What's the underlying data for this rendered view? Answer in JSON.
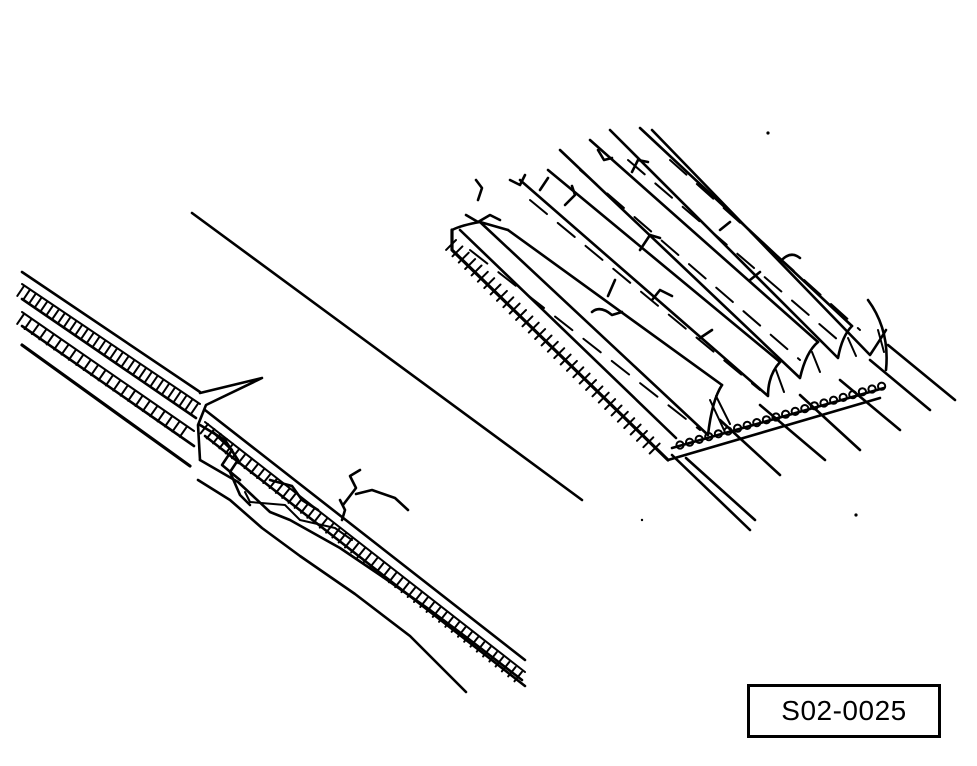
{
  "figure": {
    "id_label": "S02-0025",
    "colors": {
      "ink": "#000000",
      "paper": "#ffffff"
    },
    "parts": {
      "left": "cracked-flat-belt-illustration",
      "right": "cracked-ribbed-belt-illustration"
    }
  }
}
